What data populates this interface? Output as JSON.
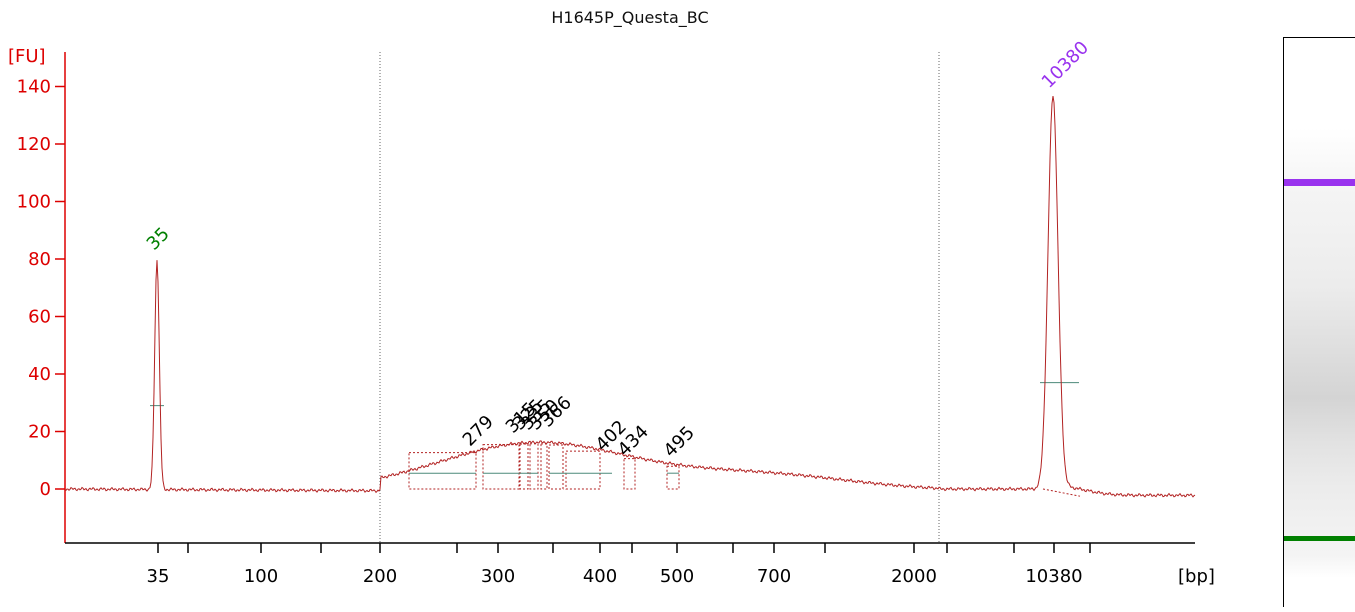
{
  "chart_data": {
    "type": "line",
    "title": "H1645P_Questa_BC",
    "ylabel": "[FU]",
    "xlabel": "[bp]",
    "ylim": [
      -18,
      148
    ],
    "yticks": [
      0,
      20,
      40,
      60,
      80,
      100,
      120,
      140
    ],
    "xticks": [
      "35",
      "100",
      "200",
      "300",
      "400",
      "500",
      "700",
      "2000",
      "10380"
    ],
    "grid": false,
    "colors": {
      "axis": "#dd0000",
      "trace": "#b22222",
      "lower_marker": "#008000",
      "upper_marker": "#9933ee",
      "peak_labels": "#000000",
      "baseline": "#4c8a7a"
    },
    "marker_peaks": [
      {
        "label": "35",
        "height": 80
      },
      {
        "label": "10380",
        "height": 137
      }
    ],
    "peak_labels": [
      "279",
      "315",
      "325",
      "335",
      "350",
      "366",
      "402",
      "434",
      "495"
    ]
  },
  "gel": {
    "upper_band_color": "#9933ee",
    "lower_band_color": "#008000"
  }
}
